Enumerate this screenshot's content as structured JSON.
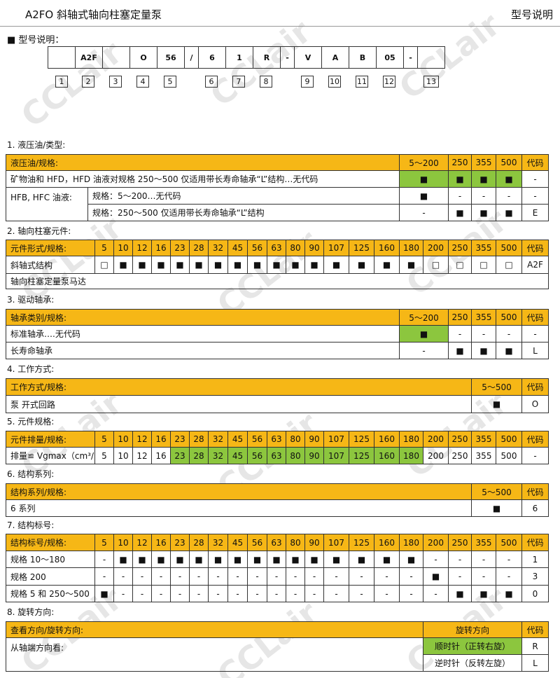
{
  "header": {
    "title": "A2FO 斜轴式轴向柱塞定量泵",
    "subtitle": "型号说明"
  },
  "watermark": "CCLair",
  "model": {
    "label": "■  型号说明：",
    "codes": [
      "A2F",
      "O",
      "56",
      "/",
      "6",
      "1",
      "R",
      "-",
      "V",
      "A",
      "B",
      "05",
      "-"
    ],
    "numbers": [
      "1",
      "2",
      "3",
      "4",
      "5",
      "6",
      "7",
      "8",
      "9",
      "10",
      "11",
      "12",
      "13"
    ]
  },
  "sections": [
    {
      "title": "1.  液压油/类型:",
      "header": [
        "液压油/规格:",
        "5～200",
        "250",
        "355",
        "500",
        "代码"
      ],
      "rows": [
        [
          "矿物油和 HFD，HFD 油液对规格 250～500 仅适用带长寿命轴承“L”结构…无代码",
          "■",
          "■",
          "■",
          "■",
          "-"
        ],
        [
          "HFB, HFC 油液:",
          "规格：5～200…无代码",
          "■",
          "-",
          "-",
          "-",
          "-"
        ],
        [
          "规格：250～500 仅适用带长寿命轴承“L”结构",
          "-",
          "■",
          "■",
          "■",
          "E"
        ]
      ]
    },
    {
      "title": "2.  轴向柱塞元件:",
      "header": [
        "元件形式/规格:",
        "5",
        "10",
        "12",
        "16",
        "23",
        "28",
        "32",
        "45",
        "56",
        "63",
        "80",
        "90",
        "107",
        "125",
        "160",
        "180",
        "200",
        "250",
        "355",
        "500",
        "代码"
      ],
      "rows": [
        [
          "斜轴式结构",
          "□",
          "■",
          "■",
          "■",
          "■",
          "■",
          "■",
          "■",
          "■",
          "■",
          "■",
          "■",
          "■",
          "■",
          "■",
          "■",
          "□",
          "□",
          "□",
          "□",
          "A2F"
        ],
        [
          "轴向柱塞定量泵马达"
        ]
      ]
    },
    {
      "title": "3.  驱动轴承:",
      "header": [
        "轴承类别/规格:",
        "5～200",
        "250",
        "355",
        "500",
        "代码"
      ],
      "rows": [
        [
          "标准轴承….无代码",
          "■",
          "-",
          "-",
          "-",
          "-"
        ],
        [
          "长寿命轴承",
          "-",
          "■",
          "■",
          "■",
          "L"
        ]
      ]
    },
    {
      "title": "4.  工作方式:",
      "header": [
        "工作方式/规格:",
        "5～500",
        "代码"
      ],
      "rows": [
        [
          "泵  开式回路",
          "■",
          "O"
        ]
      ]
    },
    {
      "title": "5.  元件规格:",
      "header": [
        "元件排量/规格:",
        "5",
        "10",
        "12",
        "16",
        "23",
        "28",
        "32",
        "45",
        "56",
        "63",
        "80",
        "90",
        "107",
        "125",
        "160",
        "180",
        "200",
        "250",
        "355",
        "500",
        "代码"
      ],
      "rows": [
        [
          "排量≌ Vgmax（cm³/r）",
          "5",
          "10",
          "12",
          "16",
          "23",
          "28",
          "32",
          "45",
          "56",
          "63",
          "80",
          "90",
          "107",
          "125",
          "160",
          "180",
          "200",
          "250",
          "355",
          "500",
          "-"
        ]
      ]
    },
    {
      "title": "6.  结构系列:",
      "header": [
        "结构系列/规格:",
        "5～500",
        "代码"
      ],
      "rows": [
        [
          "6 系列",
          "■",
          "6"
        ]
      ]
    },
    {
      "title": "7.  结构标号:",
      "header": [
        "结构标号/规格:",
        "5",
        "10",
        "12",
        "16",
        "23",
        "28",
        "32",
        "45",
        "56",
        "63",
        "80",
        "90",
        "107",
        "125",
        "160",
        "180",
        "200",
        "250",
        "355",
        "500",
        "代码"
      ],
      "rows": [
        [
          "规格 10～180",
          "-",
          "■",
          "■",
          "■",
          "■",
          "■",
          "■",
          "■",
          "■",
          "■",
          "■",
          "■",
          "■",
          "■",
          "■",
          "■",
          "-",
          "-",
          "-",
          "-",
          "1"
        ],
        [
          "规格 200",
          "-",
          "-",
          "-",
          "-",
          "-",
          "-",
          "-",
          "-",
          "-",
          "-",
          "-",
          "-",
          "-",
          "-",
          "-",
          "-",
          "■",
          "-",
          "-",
          "-",
          "3"
        ],
        [
          "规格 5 和 250～500",
          "■",
          "-",
          "-",
          "-",
          "-",
          "-",
          "-",
          "-",
          "-",
          "-",
          "-",
          "-",
          "-",
          "-",
          "-",
          "-",
          "-",
          "■",
          "■",
          "■",
          "0"
        ]
      ]
    },
    {
      "title": "8.  旋转方向:",
      "header": [
        "查看方向/旋转方向:",
        "旋转方向",
        "代码"
      ],
      "rows": [
        [
          "从轴端方向看:",
          "顺时针（正转右旋）",
          "R"
        ],
        [
          "逆时针（反转左旋）",
          "L"
        ]
      ]
    }
  ]
}
